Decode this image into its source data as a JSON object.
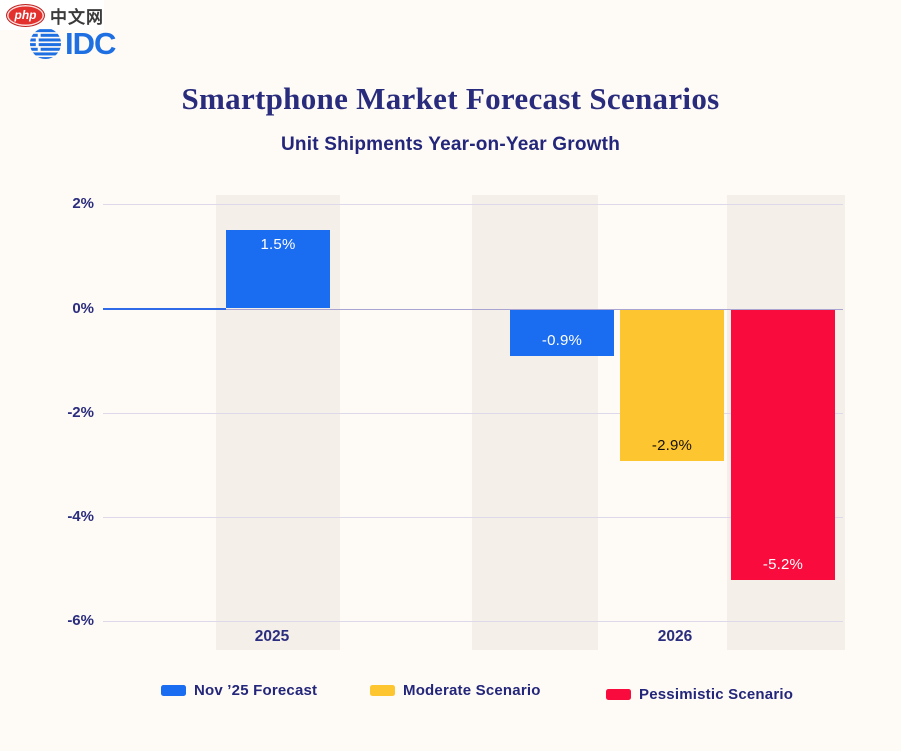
{
  "watermark": {
    "badge": "php",
    "text": "中文网"
  },
  "header": {
    "brand": "IDC"
  },
  "colors": {
    "background": "#FEFAF5",
    "band": "#F5EFE9",
    "grid": "#DDD9EB",
    "zero_line": "#A9A4D2",
    "zero_line_left": "#2F6BE8",
    "navy_text": "#2B2D7E",
    "idc_blue": "#1E70E2",
    "php_red": "#E3312E",
    "series_blue": "#1A6CF0",
    "series_yellow": "#FDC52F",
    "series_red": "#F90B3D"
  },
  "chart_data": {
    "type": "bar",
    "title": "Smartphone Market Forecast Scenarios",
    "subtitle": "Unit Shipments Year-on-Year Growth",
    "xlabel": "",
    "ylabel": "",
    "ylim": [
      -6,
      2
    ],
    "grid": "horizontal",
    "legend_position": "bottom",
    "yticks": [
      {
        "label": "2%",
        "value": 2
      },
      {
        "label": "0%",
        "value": 0
      },
      {
        "label": "-2%",
        "value": -2
      },
      {
        "label": "-4%",
        "value": -4
      },
      {
        "label": "-6%",
        "value": -6
      }
    ],
    "categories": [
      "2025",
      "2026"
    ],
    "series": [
      {
        "name": "Nov ’25 Forecast",
        "color": "#1A6CF0",
        "values": [
          1.5,
          -0.9
        ]
      },
      {
        "name": "Moderate Scenario",
        "color": "#FDC52F",
        "values": [
          null,
          -2.9
        ]
      },
      {
        "name": "Pessimistic Scenario",
        "color": "#F90B3D",
        "values": [
          null,
          -5.2
        ]
      }
    ],
    "bars": [
      {
        "category": "2025",
        "series": "Nov ’25 Forecast",
        "value": 1.5,
        "label": "1.5%",
        "label_color": "#FFFFFF"
      },
      {
        "category": "2026",
        "series": "Nov ’25 Forecast",
        "value": -0.9,
        "label": "-0.9%",
        "label_color": "#FFFFFF"
      },
      {
        "category": "2026",
        "series": "Moderate Scenario",
        "value": -2.9,
        "label": "-2.9%",
        "label_color": "#14110A"
      },
      {
        "category": "2026",
        "series": "Pessimistic Scenario",
        "value": -5.2,
        "label": "-5.2%",
        "label_color": "#FFFFFF"
      }
    ],
    "legend": [
      {
        "label": "Nov ’25 Forecast",
        "color": "#1A6CF0"
      },
      {
        "label": "Moderate Scenario",
        "color": "#FDC52F"
      },
      {
        "label": "Pessimistic Scenario",
        "color": "#F90B3D"
      }
    ]
  }
}
